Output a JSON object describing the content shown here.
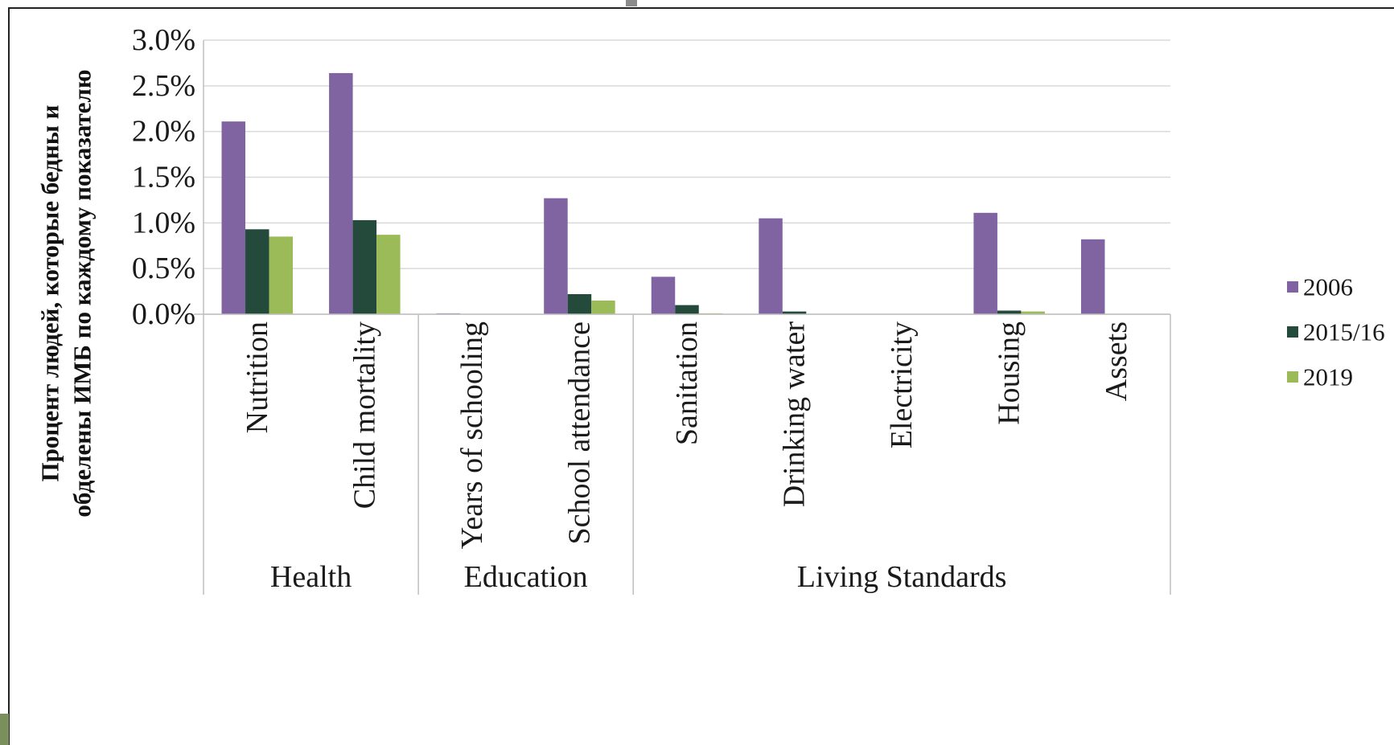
{
  "chart_data": {
    "type": "bar",
    "ylabel_lines": [
      "Процент людей, которые бедны и",
      "обделены ИМБ по каждому показателю"
    ],
    "ylim": [
      0,
      0.03
    ],
    "yticks": [
      0,
      0.005,
      0.01,
      0.015,
      0.02,
      0.025,
      0.03
    ],
    "ytick_labels": [
      "0.0%",
      "0.5%",
      "1.0%",
      "1.5%",
      "2.0%",
      "2.5%",
      "3.0%"
    ],
    "grid": true,
    "legend_position": "right",
    "categories": [
      "Nutrition",
      "Child mortality",
      "Years of schooling",
      "School attendance",
      "Sanitation",
      "Drinking water",
      "Electricity",
      "Housing",
      "Assets"
    ],
    "groups": [
      {
        "label": "Health",
        "count": 2
      },
      {
        "label": "Education",
        "count": 2
      },
      {
        "label": "Living Standards",
        "count": 5
      }
    ],
    "series": [
      {
        "name": "2006",
        "color": "#8064a2",
        "values": [
          0.0211,
          0.0264,
          0.0001,
          0.0127,
          0.0041,
          0.0105,
          0.0,
          0.0111,
          0.0082
        ]
      },
      {
        "name": "2015/16",
        "color": "#244a3c",
        "values": [
          0.0093,
          0.0103,
          0.0,
          0.0022,
          0.001,
          0.0003,
          0.0,
          0.0004,
          0.0
        ]
      },
      {
        "name": "2019",
        "color": "#9bbb59",
        "values": [
          0.0085,
          0.0087,
          0.0,
          0.0015,
          0.0001,
          0.0,
          0.0,
          0.0003,
          0.0
        ]
      }
    ]
  }
}
